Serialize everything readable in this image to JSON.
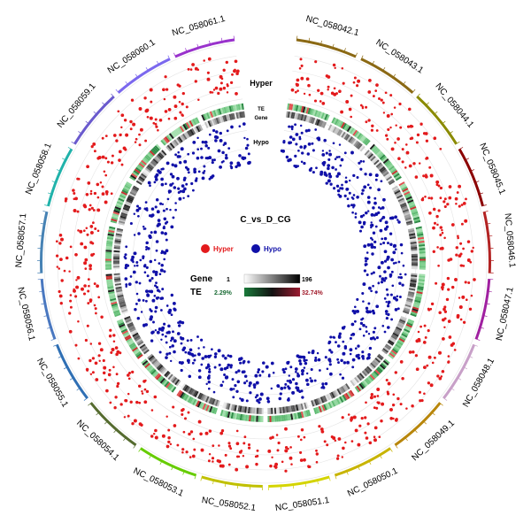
{
  "chart_data": {
    "type": "scatter",
    "layout": "circos",
    "title": "C_vs_D_CG",
    "chromosomes": [
      {
        "name": "NC_058042.1",
        "color": "#8b6914"
      },
      {
        "name": "NC_058043.1",
        "color": "#8b6914"
      },
      {
        "name": "NC_058044.1",
        "color": "#8a8a00"
      },
      {
        "name": "NC_058045.1",
        "color": "#8b0000"
      },
      {
        "name": "NC_058046.1",
        "color": "#b22222"
      },
      {
        "name": "NC_058047.1",
        "color": "#a020a0"
      },
      {
        "name": "NC_058048.1",
        "color": "#c8a0c8"
      },
      {
        "name": "NC_058049.1",
        "color": "#b8860b"
      },
      {
        "name": "NC_058050.1",
        "color": "#c8b400"
      },
      {
        "name": "NC_058051.1",
        "color": "#d4d400"
      },
      {
        "name": "NC_058052.1",
        "color": "#c0c000"
      },
      {
        "name": "NC_058053.1",
        "color": "#66cc00"
      },
      {
        "name": "NC_058054.1",
        "color": "#556b2f"
      },
      {
        "name": "NC_058055.1",
        "color": "#2f6fb4"
      },
      {
        "name": "NC_058056.1",
        "color": "#4a78c0"
      },
      {
        "name": "NC_058057.1",
        "color": "#4682b4"
      },
      {
        "name": "NC_058058.1",
        "color": "#20b2aa"
      },
      {
        "name": "NC_058059.1",
        "color": "#6a5acd"
      },
      {
        "name": "NC_058060.1",
        "color": "#7b68ee"
      },
      {
        "name": "NC_058061.1",
        "color": "#9932cc"
      }
    ],
    "tracks": {
      "hyper_label": "Hyper",
      "te_label": "TE",
      "gene_label": "Gene",
      "hypo_label": "Hypo"
    },
    "legend": {
      "hyper": {
        "label": "Hyper",
        "color": "#e31a1c"
      },
      "hypo": {
        "label": "Hypo",
        "color": "#1010a8"
      }
    },
    "gene_scale": {
      "label": "Gene",
      "min": "1",
      "max": "196",
      "colors": [
        "#ffffff",
        "#000000"
      ]
    },
    "te_scale": {
      "label": "TE",
      "min": "2.29%",
      "max": "32.74%",
      "colors": [
        "#1a7a3a",
        "#9b1b30"
      ],
      "min_color": "#1a6b35",
      "max_color": "#a01828"
    }
  }
}
